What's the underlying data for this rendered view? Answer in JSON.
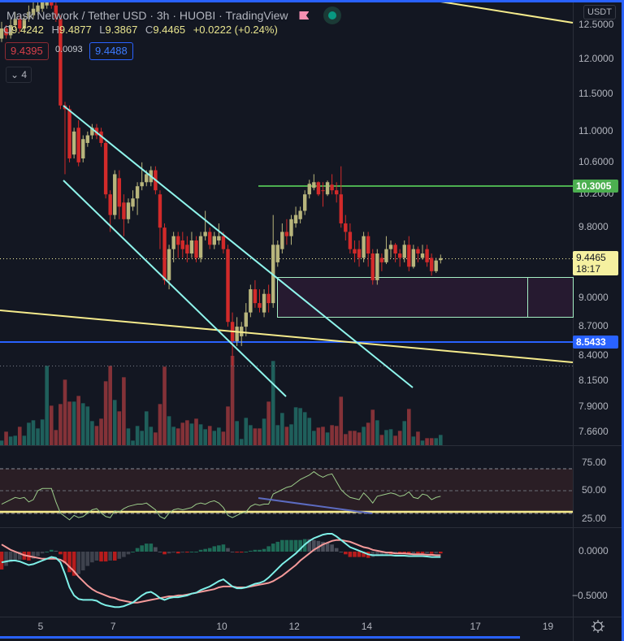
{
  "header": {
    "symbol_title": "Mask Network / Tether USD · 3h · HUOBI · TradingView",
    "ohlc": {
      "o_label": "O",
      "o": "9.4242",
      "h_label": "H",
      "h": "9.4877",
      "l_label": "L",
      "l": "9.3867",
      "c_label": "C",
      "c": "9.4465",
      "change": "+0.0222 (+0.24%)"
    },
    "bid": "9.4395",
    "spread": "0.0093",
    "ask": "9.4488",
    "indicators_count": "4",
    "flag_icon": "flag-icon",
    "live_icon": "market-open-dot"
  },
  "price_axis": {
    "currency": "USDT",
    "ticks": [
      {
        "value": 12.5,
        "label": "12.5000"
      },
      {
        "value": 12.0,
        "label": "12.0000"
      },
      {
        "value": 11.5,
        "label": "11.5000"
      },
      {
        "value": 11.0,
        "label": "11.0000"
      },
      {
        "value": 10.6,
        "label": "10.6000"
      },
      {
        "value": 10.2,
        "label": "10.2000"
      },
      {
        "value": 9.8,
        "label": "9.8000"
      },
      {
        "value": 9.0,
        "label": "9.0000"
      },
      {
        "value": 8.7,
        "label": "8.7000"
      },
      {
        "value": 8.4,
        "label": "8.4000"
      },
      {
        "value": 8.15,
        "label": "8.1500"
      },
      {
        "value": 7.9,
        "label": "7.9000"
      },
      {
        "value": 7.66,
        "label": "7.6600"
      }
    ],
    "last_price": "9.4465",
    "countdown": "18:17",
    "green_level": "10.3005",
    "blue_level": "8.5433"
  },
  "rsi_axis": [
    {
      "value": 75,
      "label": "75.00"
    },
    {
      "value": 50,
      "label": "50.00"
    },
    {
      "value": 25,
      "label": "25.00"
    }
  ],
  "macd_axis": [
    {
      "value": 0,
      "label": "0.0000"
    },
    {
      "value": -0.5,
      "label": "−0.5000"
    }
  ],
  "time_axis": [
    {
      "day": 5,
      "label": "5"
    },
    {
      "day": 7,
      "label": "7"
    },
    {
      "day": 10,
      "label": "10"
    },
    {
      "day": 12,
      "label": "12"
    },
    {
      "day": 14,
      "label": "14"
    },
    {
      "day": 17,
      "label": "17"
    },
    {
      "day": 19,
      "label": "19"
    }
  ],
  "colors": {
    "background": "#131722",
    "up": "#b8b57c",
    "down": "#d22a2a",
    "vol_up": "#1f5f5b",
    "vol_down": "#843238",
    "rsi": "#9ccc8a",
    "macd": "#7ff0e8",
    "signal": "#f59a9a",
    "channel": "#8ff5ec",
    "trend_yellow": "#f5eb8c",
    "green_level": "#4caf50",
    "blue_level": "#2962ff",
    "last_price": "#f5f0a0",
    "frame": "#2962ff"
  },
  "chart_data": {
    "type": "candlestick",
    "title": "Mask Network / Tether USD · 3h · HUOBI",
    "xlabel": "Day",
    "ylabel": "USDT",
    "ylim": [
      7.6,
      12.6
    ],
    "scale": "log",
    "ohlc": [
      [
        12.3,
        12.55,
        12.25,
        12.45
      ],
      [
        12.45,
        12.5,
        12.3,
        12.35
      ],
      [
        12.35,
        12.6,
        12.3,
        12.5
      ],
      [
        12.5,
        12.7,
        12.45,
        12.6
      ],
      [
        12.6,
        12.65,
        12.4,
        12.45
      ],
      [
        12.45,
        12.65,
        12.4,
        12.6
      ],
      [
        12.6,
        12.8,
        12.55,
        12.7
      ],
      [
        12.65,
        12.85,
        12.6,
        12.75
      ],
      [
        12.7,
        12.9,
        12.65,
        12.8
      ],
      [
        12.75,
        12.95,
        12.7,
        12.85
      ],
      [
        12.8,
        13.1,
        12.75,
        12.95
      ],
      [
        12.95,
        13.0,
        12.75,
        12.8
      ],
      [
        12.8,
        12.85,
        12.55,
        12.6
      ],
      [
        12.6,
        12.65,
        11.3,
        11.35
      ],
      [
        11.35,
        11.4,
        10.45,
        11.3
      ],
      [
        11.3,
        11.35,
        10.6,
        10.65
      ],
      [
        10.7,
        11.05,
        10.65,
        11.0
      ],
      [
        11.05,
        11.15,
        10.55,
        10.6
      ],
      [
        10.65,
        10.95,
        10.6,
        10.9
      ],
      [
        10.85,
        11.0,
        10.8,
        10.95
      ],
      [
        10.95,
        11.1,
        10.9,
        11.05
      ],
      [
        11.05,
        11.1,
        10.9,
        10.95
      ],
      [
        11.0,
        11.05,
        10.8,
        10.85
      ],
      [
        10.85,
        10.9,
        10.15,
        10.2
      ],
      [
        10.2,
        10.25,
        9.75,
        9.95
      ],
      [
        9.95,
        10.5,
        9.9,
        10.45
      ],
      [
        10.4,
        10.5,
        9.9,
        10.05
      ],
      [
        10.1,
        10.2,
        9.7,
        9.9
      ],
      [
        9.9,
        10.15,
        9.85,
        10.1
      ],
      [
        10.05,
        10.25,
        10.0,
        10.15
      ],
      [
        10.15,
        10.35,
        9.95,
        10.3
      ],
      [
        10.3,
        10.6,
        10.25,
        10.35
      ],
      [
        10.35,
        10.5,
        10.3,
        10.45
      ],
      [
        10.35,
        10.55,
        10.3,
        10.5
      ],
      [
        10.5,
        10.55,
        10.2,
        10.25
      ],
      [
        10.2,
        10.25,
        9.55,
        9.8
      ],
      [
        9.8,
        9.85,
        9.15,
        9.2
      ],
      [
        9.2,
        9.6,
        9.1,
        9.55
      ],
      [
        9.55,
        9.75,
        9.4,
        9.7
      ],
      [
        9.7,
        9.75,
        9.45,
        9.6
      ],
      [
        9.65,
        9.75,
        9.45,
        9.55
      ],
      [
        9.6,
        9.7,
        9.4,
        9.5
      ],
      [
        9.5,
        9.75,
        9.45,
        9.65
      ],
      [
        9.65,
        9.7,
        9.4,
        9.45
      ],
      [
        9.45,
        9.75,
        9.4,
        9.7
      ],
      [
        9.7,
        10.0,
        9.65,
        9.75
      ],
      [
        9.75,
        9.8,
        9.55,
        9.6
      ],
      [
        9.6,
        9.75,
        9.55,
        9.7
      ],
      [
        9.65,
        9.85,
        9.6,
        9.7
      ],
      [
        9.7,
        9.75,
        9.5,
        9.55
      ],
      [
        9.55,
        9.6,
        8.7,
        8.75
      ],
      [
        8.75,
        8.85,
        8.3,
        8.55
      ],
      [
        8.55,
        8.8,
        8.5,
        8.7
      ],
      [
        8.6,
        8.75,
        8.5,
        8.7
      ],
      [
        8.7,
        8.95,
        8.6,
        8.85
      ],
      [
        8.85,
        9.15,
        8.8,
        9.1
      ],
      [
        9.1,
        9.2,
        8.9,
        8.95
      ],
      [
        8.95,
        9.1,
        8.85,
        8.9
      ],
      [
        8.85,
        9.1,
        8.8,
        9.05
      ],
      [
        9.05,
        9.15,
        8.85,
        8.95
      ],
      [
        8.95,
        9.95,
        8.9,
        9.6
      ],
      [
        9.4,
        9.65,
        9.35,
        9.6
      ],
      [
        9.55,
        9.85,
        9.5,
        9.75
      ],
      [
        9.75,
        9.9,
        9.6,
        9.7
      ],
      [
        9.7,
        9.95,
        9.6,
        9.9
      ],
      [
        9.85,
        10.05,
        9.8,
        9.95
      ],
      [
        9.9,
        10.05,
        9.85,
        10.0
      ],
      [
        10.0,
        10.25,
        9.95,
        10.2
      ],
      [
        10.2,
        10.38,
        10.15,
        10.33
      ],
      [
        10.28,
        10.45,
        10.25,
        10.35
      ],
      [
        10.35,
        10.36,
        10.18,
        10.2
      ],
      [
        10.25,
        10.35,
        10.05,
        10.24
      ],
      [
        10.2,
        10.37,
        10.18,
        10.35
      ],
      [
        10.32,
        10.45,
        10.2,
        10.25
      ],
      [
        10.25,
        10.35,
        10.1,
        10.2
      ],
      [
        10.2,
        10.55,
        9.8,
        9.85
      ],
      [
        9.85,
        9.95,
        9.65,
        9.75
      ],
      [
        9.75,
        9.85,
        9.5,
        9.55
      ],
      [
        9.55,
        9.65,
        9.4,
        9.5
      ],
      [
        9.55,
        9.65,
        9.35,
        9.45
      ],
      [
        9.45,
        9.75,
        9.4,
        9.7
      ],
      [
        9.7,
        9.75,
        9.35,
        9.5
      ],
      [
        9.5,
        9.55,
        9.15,
        9.2
      ],
      [
        9.2,
        9.55,
        9.15,
        9.5
      ],
      [
        9.45,
        9.5,
        9.3,
        9.4
      ],
      [
        9.4,
        9.7,
        9.38,
        9.55
      ],
      [
        9.55,
        9.65,
        9.45,
        9.6
      ],
      [
        9.6,
        9.62,
        9.4,
        9.5
      ],
      [
        9.5,
        9.55,
        9.35,
        9.45
      ],
      [
        9.45,
        9.65,
        9.4,
        9.6
      ],
      [
        9.6,
        9.7,
        9.3,
        9.35
      ],
      [
        9.35,
        9.6,
        9.33,
        9.55
      ],
      [
        9.55,
        9.58,
        9.4,
        9.5
      ],
      [
        9.45,
        9.6,
        9.43,
        9.5
      ],
      [
        9.55,
        9.6,
        9.35,
        9.4
      ],
      [
        9.45,
        9.5,
        9.25,
        9.3
      ],
      [
        9.3,
        9.45,
        9.28,
        9.42
      ],
      [
        9.4242,
        9.4877,
        9.3867,
        9.4465
      ]
    ],
    "volume": [
      17,
      50,
      32,
      35,
      68,
      35,
      83,
      92,
      62,
      95,
      293,
      146,
      56,
      152,
      242,
      161,
      161,
      182,
      155,
      143,
      89,
      71,
      98,
      236,
      293,
      167,
      125,
      251,
      62,
      17,
      71,
      53,
      125,
      68,
      47,
      152,
      290,
      107,
      68,
      62,
      83,
      92,
      80,
      98,
      77,
      59,
      71,
      53,
      65,
      50,
      143,
      330,
      89,
      23,
      101,
      74,
      62,
      62,
      98,
      161,
      311,
      74,
      119,
      68,
      77,
      140,
      137,
      122,
      101,
      53,
      65,
      68,
      47,
      74,
      71,
      179,
      41,
      53,
      53,
      47,
      68,
      83,
      131,
      92,
      38,
      56,
      59,
      35,
      53,
      89,
      134,
      32,
      50,
      17,
      26,
      26,
      26,
      38
    ],
    "rsi": {
      "levels": [
        70,
        50,
        30
      ],
      "values": [
        38,
        40,
        42,
        44,
        43,
        44,
        40,
        42,
        50,
        52,
        52,
        52,
        40,
        30,
        27,
        24,
        28,
        26,
        27,
        30,
        33,
        34,
        30,
        27,
        26,
        32,
        31,
        34,
        36,
        37,
        38,
        38,
        39,
        36,
        33,
        27,
        25,
        30,
        33,
        34,
        33,
        34,
        35,
        38,
        39,
        38,
        40,
        41,
        39,
        35,
        28,
        26,
        28,
        30,
        31,
        36,
        38,
        37,
        38,
        38,
        47,
        49,
        51,
        53,
        54,
        57,
        60,
        62,
        64,
        67,
        64,
        62,
        64,
        65,
        58,
        51,
        47,
        44,
        43,
        42,
        48,
        44,
        39,
        45,
        46,
        47,
        48,
        47,
        45,
        46,
        49,
        44,
        43,
        47,
        46,
        42,
        44,
        45
      ]
    },
    "macd": {
      "macd": [
        -0.12,
        -0.11,
        -0.1,
        -0.1,
        -0.11,
        -0.13,
        -0.15,
        -0.14,
        -0.12,
        -0.1,
        -0.08,
        -0.06,
        -0.07,
        -0.12,
        -0.25,
        -0.4,
        -0.49,
        -0.53,
        -0.54,
        -0.54,
        -0.54,
        -0.55,
        -0.58,
        -0.6,
        -0.61,
        -0.62,
        -0.62,
        -0.61,
        -0.59,
        -0.57,
        -0.53,
        -0.49,
        -0.46,
        -0.45,
        -0.48,
        -0.52,
        -0.54,
        -0.52,
        -0.51,
        -0.51,
        -0.5,
        -0.49,
        -0.47,
        -0.46,
        -0.43,
        -0.41,
        -0.39,
        -0.36,
        -0.33,
        -0.31,
        -0.35,
        -0.39,
        -0.41,
        -0.41,
        -0.4,
        -0.38,
        -0.36,
        -0.35,
        -0.33,
        -0.29,
        -0.24,
        -0.19,
        -0.14,
        -0.1,
        -0.06,
        -0.02,
        0.03,
        0.08,
        0.12,
        0.15,
        0.17,
        0.19,
        0.2,
        0.2,
        0.17,
        0.13,
        0.09,
        0.05,
        0.03,
        0.01,
        -0.01,
        -0.03,
        -0.04,
        -0.04,
        -0.04,
        -0.04,
        -0.04,
        -0.045,
        -0.045,
        -0.045,
        -0.05,
        -0.05,
        -0.05,
        -0.05,
        -0.055,
        -0.06,
        -0.06,
        -0.06
      ],
      "signal": [
        0.08,
        0.05,
        0.02,
        0.0,
        -0.02,
        -0.04,
        -0.05,
        -0.06,
        -0.07,
        -0.08,
        -0.08,
        -0.08,
        -0.08,
        -0.09,
        -0.12,
        -0.17,
        -0.22,
        -0.28,
        -0.33,
        -0.38,
        -0.42,
        -0.45,
        -0.47,
        -0.49,
        -0.51,
        -0.52,
        -0.54,
        -0.55,
        -0.56,
        -0.57,
        -0.57,
        -0.56,
        -0.55,
        -0.54,
        -0.53,
        -0.52,
        -0.51,
        -0.5,
        -0.5,
        -0.49,
        -0.49,
        -0.48,
        -0.47,
        -0.46,
        -0.45,
        -0.44,
        -0.43,
        -0.42,
        -0.4,
        -0.39,
        -0.39,
        -0.39,
        -0.4,
        -0.4,
        -0.4,
        -0.39,
        -0.38,
        -0.37,
        -0.36,
        -0.35,
        -0.33,
        -0.3,
        -0.27,
        -0.23,
        -0.19,
        -0.15,
        -0.1,
        -0.06,
        -0.02,
        0.02,
        0.05,
        0.08,
        0.1,
        0.12,
        0.13,
        0.13,
        0.12,
        0.11,
        0.09,
        0.07,
        0.05,
        0.04,
        0.02,
        0.01,
        0.0,
        -0.01,
        -0.01,
        -0.02,
        -0.02,
        -0.02,
        -0.025,
        -0.03,
        -0.03,
        -0.03,
        -0.035,
        -0.035,
        -0.04,
        -0.04
      ]
    }
  }
}
